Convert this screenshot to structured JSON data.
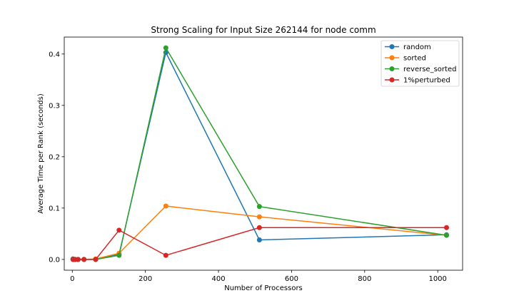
{
  "chart_data": {
    "type": "line",
    "title": "Strong Scaling for Input Size 262144 for node comm",
    "xlabel": "Number of Processors",
    "ylabel": "Average Time per Rank (seconds)",
    "xlim": [
      -22,
      1068
    ],
    "ylim": [
      -0.021,
      0.433
    ],
    "xticks": [
      0,
      200,
      400,
      600,
      800,
      1000
    ],
    "yticks": [
      0.0,
      0.1,
      0.2,
      0.3,
      0.4
    ],
    "ytick_labels": [
      "0.0",
      "0.1",
      "0.2",
      "0.3",
      "0.4"
    ],
    "x": [
      2,
      4,
      8,
      16,
      32,
      64,
      128,
      256,
      512,
      1024
    ],
    "legend_position": "top-right",
    "grid": false,
    "series": [
      {
        "name": "random",
        "color": "#1f77b4",
        "values": [
          0.001,
          0.0,
          0.0,
          0.0,
          0.0,
          0.0,
          0.01,
          0.403,
          0.038,
          0.048
        ]
      },
      {
        "name": "sorted",
        "color": "#ff7f0e",
        "values": [
          0.0,
          0.0,
          0.0,
          0.0,
          0.0,
          0.001,
          0.012,
          0.104,
          0.083,
          0.047
        ]
      },
      {
        "name": "reverse_sorted",
        "color": "#2ca02c",
        "values": [
          0.0,
          0.0,
          0.0,
          0.0,
          0.0,
          0.0,
          0.008,
          0.412,
          0.103,
          0.047
        ]
      },
      {
        "name": "1%perturbed",
        "color": "#d62728",
        "values": [
          0.0,
          0.0,
          0.0,
          0.0,
          0.0,
          0.0,
          0.057,
          0.008,
          0.062,
          0.062
        ]
      }
    ]
  }
}
